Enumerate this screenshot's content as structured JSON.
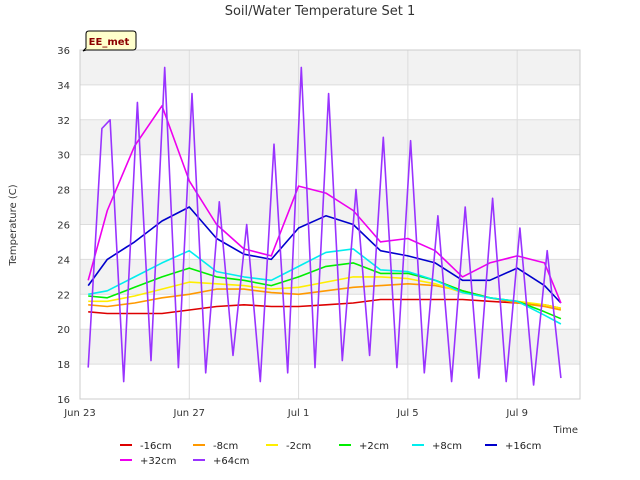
{
  "chart_data": {
    "type": "line",
    "title": "Soil/Water Temperature Set 1",
    "xlabel": "Time",
    "ylabel": "Temperature (C)",
    "badge": "EE_met",
    "ylim": [
      16,
      36
    ],
    "yticks": [
      16,
      18,
      20,
      22,
      24,
      26,
      28,
      30,
      32,
      34,
      36
    ],
    "xlim": [
      0,
      18.3
    ],
    "xticks": [
      {
        "label": "Jun 23",
        "day": 0
      },
      {
        "label": "Jun 27",
        "day": 4
      },
      {
        "label": "Jul 1",
        "day": 8
      },
      {
        "label": "Jul 5",
        "day": 12
      },
      {
        "label": "Jul 9",
        "day": 16
      }
    ],
    "grid": true,
    "legend_position": "bottom",
    "series": [
      {
        "name": "-16cm",
        "color": "#dd0000",
        "x": [
          0.3,
          1,
          2,
          3,
          4,
          5,
          6,
          7,
          8,
          9,
          10,
          11,
          12,
          13,
          14,
          15,
          16,
          17,
          17.6
        ],
        "y": [
          21.0,
          20.9,
          20.9,
          20.9,
          21.1,
          21.3,
          21.4,
          21.3,
          21.3,
          21.4,
          21.5,
          21.7,
          21.7,
          21.7,
          21.7,
          21.6,
          21.5,
          21.4,
          21.2
        ]
      },
      {
        "name": "-8cm",
        "color": "#ff9900",
        "x": [
          0.3,
          1,
          2,
          3,
          4,
          5,
          6,
          7,
          8,
          9,
          10,
          11,
          12,
          13,
          14,
          15,
          16,
          17,
          17.6
        ],
        "y": [
          21.4,
          21.3,
          21.5,
          21.8,
          22.0,
          22.3,
          22.3,
          22.1,
          22.0,
          22.2,
          22.4,
          22.5,
          22.6,
          22.5,
          22.2,
          21.8,
          21.5,
          21.3,
          21.1
        ]
      },
      {
        "name": "-2cm",
        "color": "#ffee00",
        "x": [
          0.3,
          1,
          2,
          3,
          4,
          5,
          6,
          7,
          8,
          9,
          10,
          11,
          12,
          13,
          14,
          15,
          16,
          17,
          17.6
        ],
        "y": [
          21.6,
          21.6,
          21.9,
          22.3,
          22.7,
          22.6,
          22.5,
          22.3,
          22.4,
          22.7,
          23.0,
          23.0,
          22.9,
          22.6,
          22.1,
          21.8,
          21.6,
          21.4,
          21.2
        ]
      },
      {
        "name": "+2cm",
        "color": "#00ee00",
        "x": [
          0.3,
          1,
          2,
          3,
          4,
          5,
          6,
          7,
          8,
          9,
          10,
          11,
          12,
          13,
          14,
          15,
          16,
          17,
          17.6
        ],
        "y": [
          21.9,
          21.8,
          22.4,
          23.0,
          23.5,
          23.0,
          22.8,
          22.5,
          23.0,
          23.6,
          23.8,
          23.2,
          23.2,
          22.8,
          22.2,
          21.8,
          21.6,
          21.0,
          20.6
        ]
      },
      {
        "name": "+8cm",
        "color": "#00eeee",
        "x": [
          0.3,
          1,
          2,
          3,
          4,
          5,
          6,
          7,
          8,
          9,
          10,
          11,
          12,
          13,
          14,
          15,
          16,
          17,
          17.6
        ],
        "y": [
          22.0,
          22.2,
          23.0,
          23.8,
          24.5,
          23.3,
          23.0,
          22.8,
          23.6,
          24.4,
          24.6,
          23.4,
          23.3,
          22.8,
          22.1,
          21.8,
          21.6,
          20.8,
          20.3
        ]
      },
      {
        "name": "+16cm",
        "color": "#0000cc",
        "x": [
          0.3,
          1,
          2,
          3,
          4,
          5,
          6,
          7,
          8,
          9,
          10,
          11,
          12,
          13,
          14,
          15,
          16,
          17,
          17.6
        ],
        "y": [
          22.5,
          24.0,
          25.0,
          26.2,
          27.0,
          25.2,
          24.3,
          24.0,
          25.8,
          26.5,
          26.0,
          24.5,
          24.2,
          23.8,
          22.8,
          22.8,
          23.5,
          22.5,
          21.5
        ]
      },
      {
        "name": "+32cm",
        "color": "#ee00ee",
        "x": [
          0.3,
          1,
          2,
          3,
          4,
          5,
          6,
          7,
          8,
          9,
          10,
          11,
          12,
          13,
          14,
          15,
          16,
          17,
          17.6
        ],
        "y": [
          22.8,
          26.8,
          30.5,
          32.8,
          28.5,
          26.0,
          24.6,
          24.2,
          28.2,
          27.8,
          26.8,
          25.0,
          25.2,
          24.5,
          23.0,
          23.8,
          24.2,
          23.8,
          21.5
        ]
      },
      {
        "name": "+64cm",
        "color": "#9933ff",
        "x": [
          0.3,
          0.8,
          1.1,
          1.6,
          2.1,
          2.6,
          3.1,
          3.6,
          4.1,
          4.6,
          5.1,
          5.6,
          6.1,
          6.6,
          7.1,
          7.6,
          8.1,
          8.6,
          9.1,
          9.6,
          10.1,
          10.6,
          11.1,
          11.6,
          12.1,
          12.6,
          13.1,
          13.6,
          14.1,
          14.6,
          15.1,
          15.6,
          16.1,
          16.6,
          17.1,
          17.6
        ],
        "y": [
          17.8,
          31.5,
          32.0,
          17.0,
          33.0,
          18.2,
          35.0,
          17.8,
          33.5,
          17.5,
          27.3,
          18.5,
          26.0,
          17.0,
          30.6,
          17.5,
          35.0,
          17.8,
          33.5,
          18.2,
          28.0,
          18.5,
          31.0,
          17.8,
          30.8,
          17.5,
          26.5,
          17.0,
          27.0,
          17.2,
          27.5,
          17.0,
          25.8,
          16.8,
          24.5,
          17.2
        ]
      }
    ]
  }
}
